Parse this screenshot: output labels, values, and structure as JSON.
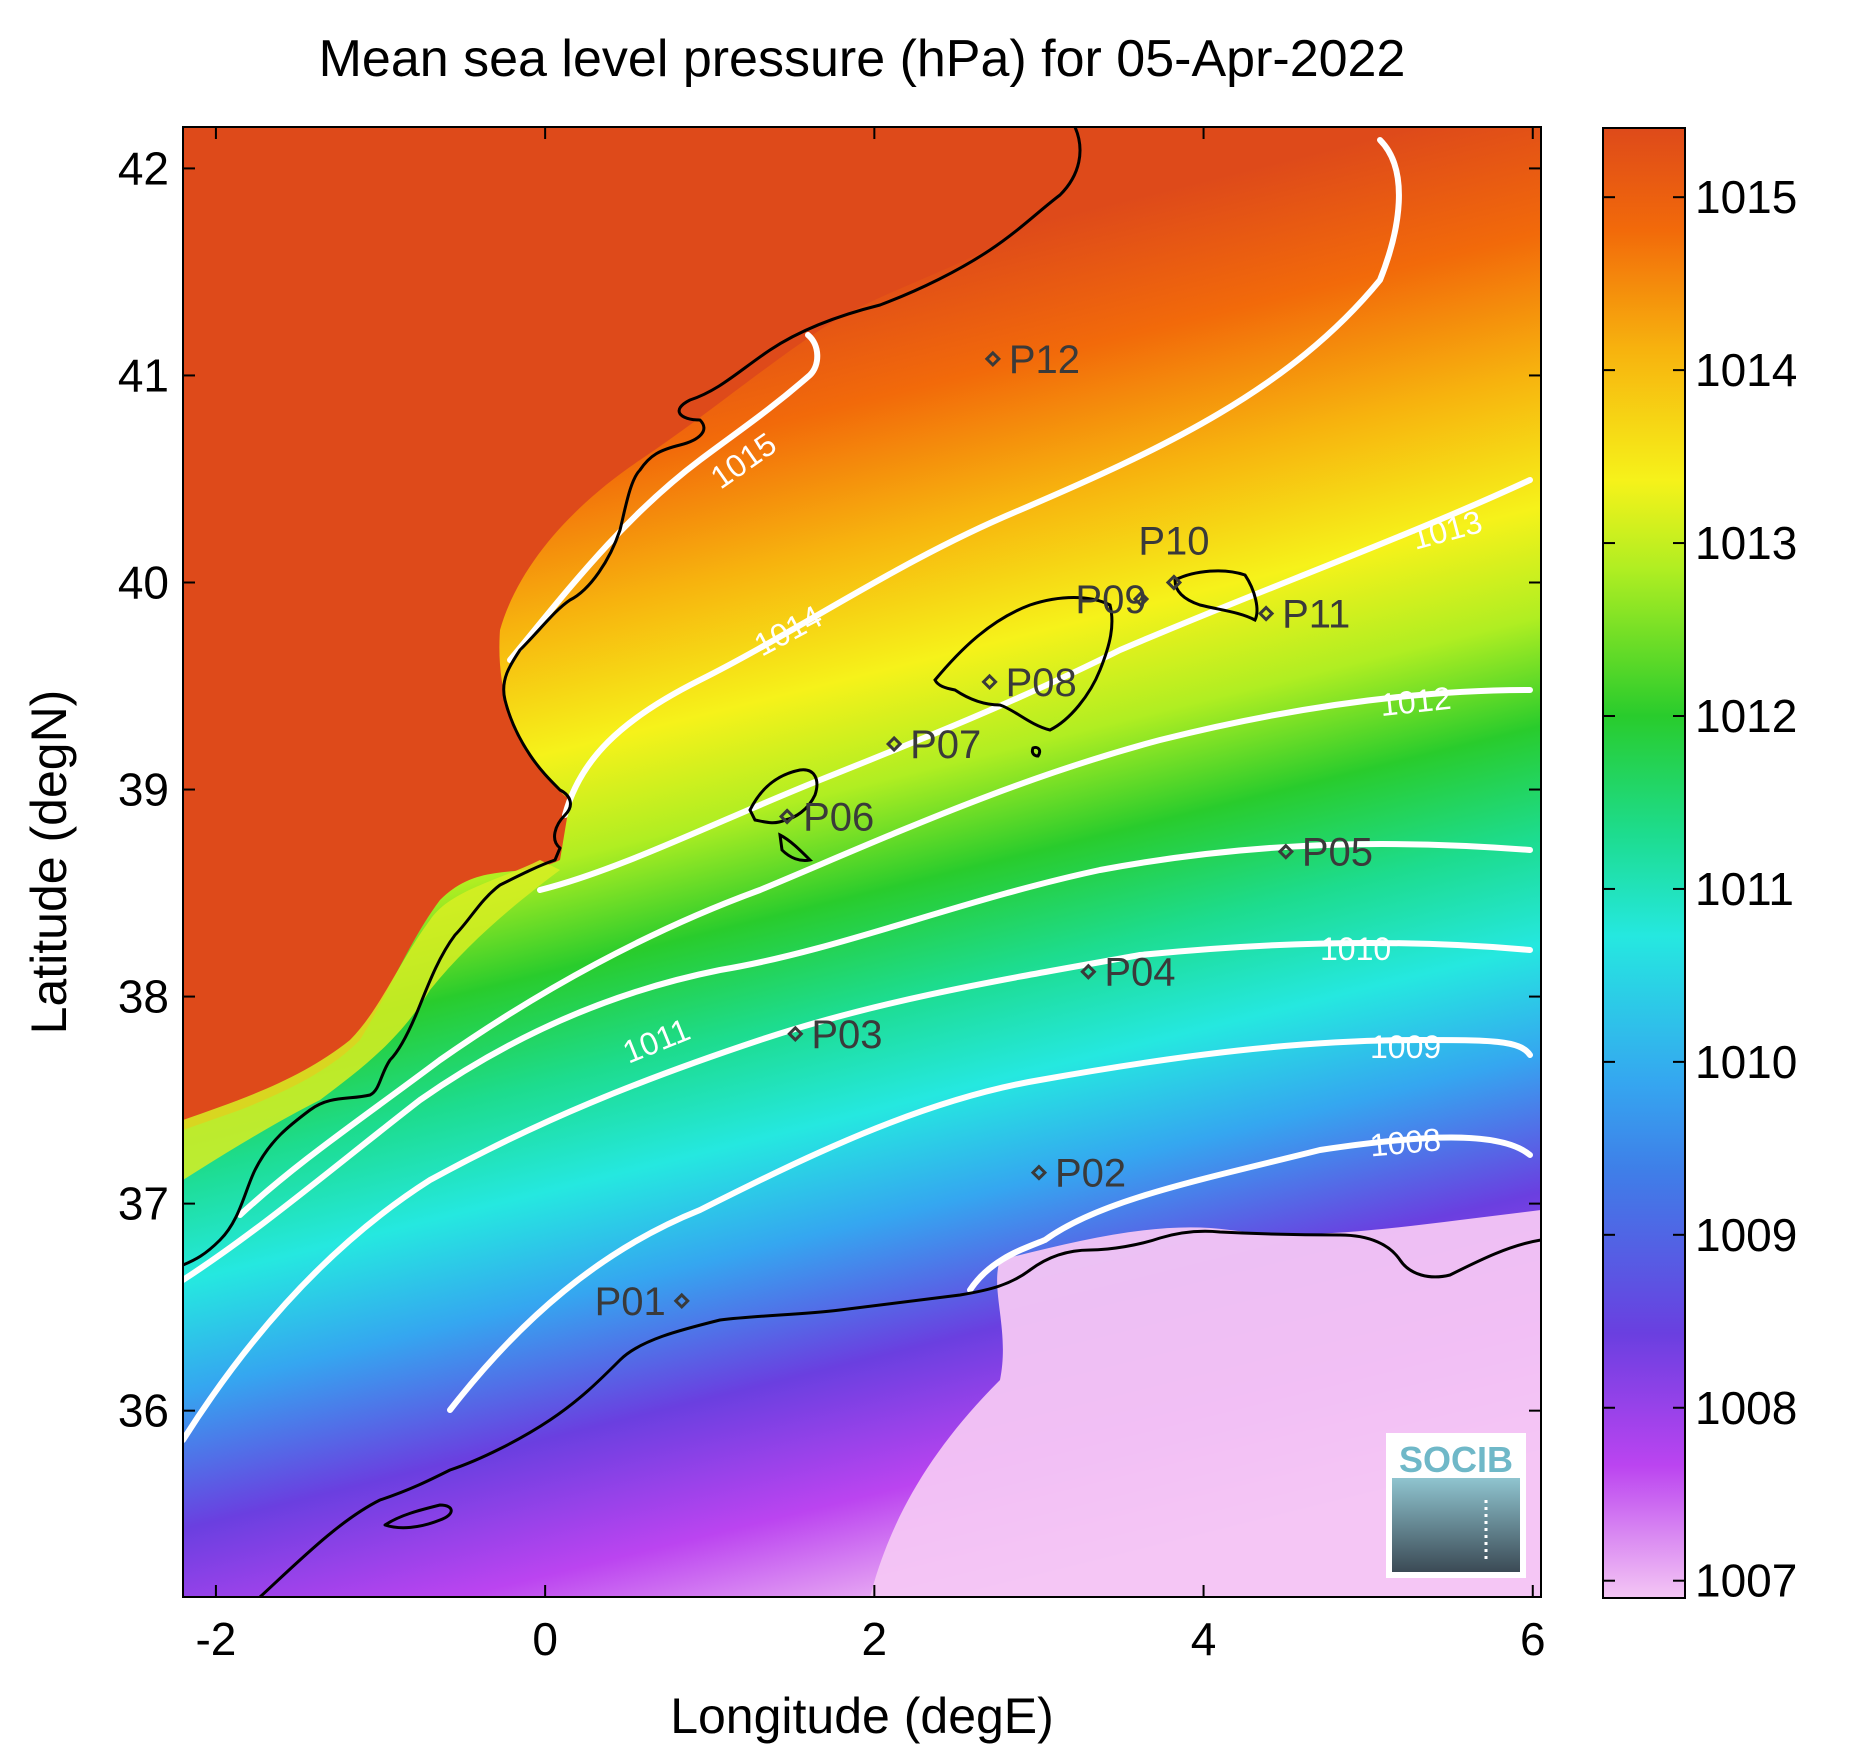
{
  "title": "Mean sea level pressure (hPa) for 05-Apr-2022",
  "xlabel": "Longitude (degE)",
  "ylabel": "Latitude (degN)",
  "x_ticks": [
    "-2",
    "0",
    "2",
    "4",
    "6"
  ],
  "y_ticks": [
    "36",
    "37",
    "38",
    "39",
    "40",
    "41",
    "42"
  ],
  "colorbar": {
    "ticks": [
      "1007",
      "1008",
      "1009",
      "1010",
      "1011",
      "1012",
      "1013",
      "1014",
      "1015"
    ],
    "range": [
      1006.9,
      1015.4
    ],
    "colormap": [
      "#f4c6f4",
      "#bb44f0",
      "#6a3fe0",
      "#35a6f0",
      "#25e8e0",
      "#1ddc8e",
      "#29cc2c",
      "#b0ee22",
      "#f6f21a",
      "#f7b20e",
      "#f26a0a",
      "#de4a1a"
    ]
  },
  "logo": "SOCIB",
  "contours": [
    {
      "label": "1015",
      "value": 1015
    },
    {
      "label": "1014",
      "value": 1014
    },
    {
      "label": "1013",
      "value": 1013
    },
    {
      "label": "1012",
      "value": 1012
    },
    {
      "label": "1011",
      "value": 1011
    },
    {
      "label": "1010",
      "value": 1010
    },
    {
      "label": "1009",
      "value": 1009
    },
    {
      "label": "1008",
      "value": 1008
    }
  ],
  "stations": [
    {
      "name": "P01",
      "lon": 0.83,
      "lat": 36.53
    },
    {
      "name": "P02",
      "lon": 3.0,
      "lat": 37.15
    },
    {
      "name": "P03",
      "lon": 1.52,
      "lat": 37.82
    },
    {
      "name": "P04",
      "lon": 3.3,
      "lat": 38.12
    },
    {
      "name": "P05",
      "lon": 4.5,
      "lat": 38.7
    },
    {
      "name": "P06",
      "lon": 1.47,
      "lat": 38.87
    },
    {
      "name": "P07",
      "lon": 2.12,
      "lat": 39.22
    },
    {
      "name": "P08",
      "lon": 2.7,
      "lat": 39.52
    },
    {
      "name": "P09",
      "lon": 3.62,
      "lat": 39.92
    },
    {
      "name": "P10",
      "lon": 3.82,
      "lat": 40.0
    },
    {
      "name": "P11",
      "lon": 4.38,
      "lat": 39.85
    },
    {
      "name": "P12",
      "lon": 2.72,
      "lat": 41.08
    }
  ],
  "chart_data": {
    "type": "heatmap",
    "title": "Mean sea level pressure (hPa) for 05-Apr-2022",
    "xlabel": "Longitude (degE)",
    "ylabel": "Latitude (degN)",
    "xlim": [
      -2.2,
      6.05
    ],
    "ylim": [
      35.1,
      42.2
    ],
    "zlim": [
      1006.9,
      1015.4
    ],
    "colorbar_ticks": [
      1007,
      1008,
      1009,
      1010,
      1011,
      1012,
      1013,
      1014,
      1015
    ],
    "contour_levels": [
      1008,
      1009,
      1010,
      1011,
      1012,
      1013,
      1014,
      1015
    ]
  }
}
